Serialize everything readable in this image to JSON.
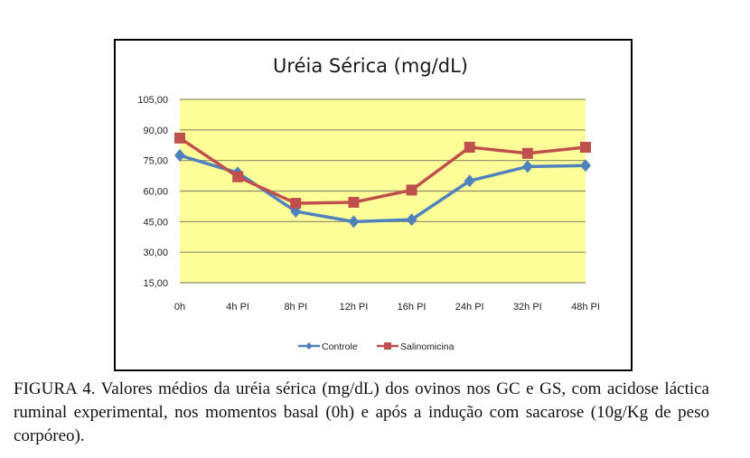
{
  "chart_data": {
    "type": "line",
    "title": "Uréia Sérica (mg/dL)",
    "xlabel": "",
    "ylabel": "",
    "categories": [
      "0h",
      "4h PI",
      "8h PI",
      "12h PI",
      "16h PI",
      "24h PI",
      "32h PI",
      "48h PI"
    ],
    "y_ticks": [
      "15,00",
      "30,00",
      "45,00",
      "60,00",
      "75,00",
      "90,00",
      "105,00"
    ],
    "ylim": [
      15,
      105
    ],
    "grid": true,
    "plot_background": "#ffff99",
    "legend_position": "bottom",
    "series": [
      {
        "name": "Controle",
        "color": "#4f81bd",
        "marker": "diamond",
        "values": [
          77.5,
          69,
          50,
          45,
          46,
          65,
          72,
          72.5
        ]
      },
      {
        "name": "Salinomicina",
        "color": "#c0504d",
        "marker": "square",
        "values": [
          86,
          67,
          54,
          54.5,
          60.5,
          81.5,
          78.5,
          81.5
        ]
      }
    ]
  },
  "caption": "FIGURA 4. Valores médios da uréia sérica (mg/dL) dos ovinos nos GC e GS, com acidose láctica ruminal experimental, nos momentos basal (0h) e após a indução com sacarose (10g/Kg de peso corpóreo)."
}
